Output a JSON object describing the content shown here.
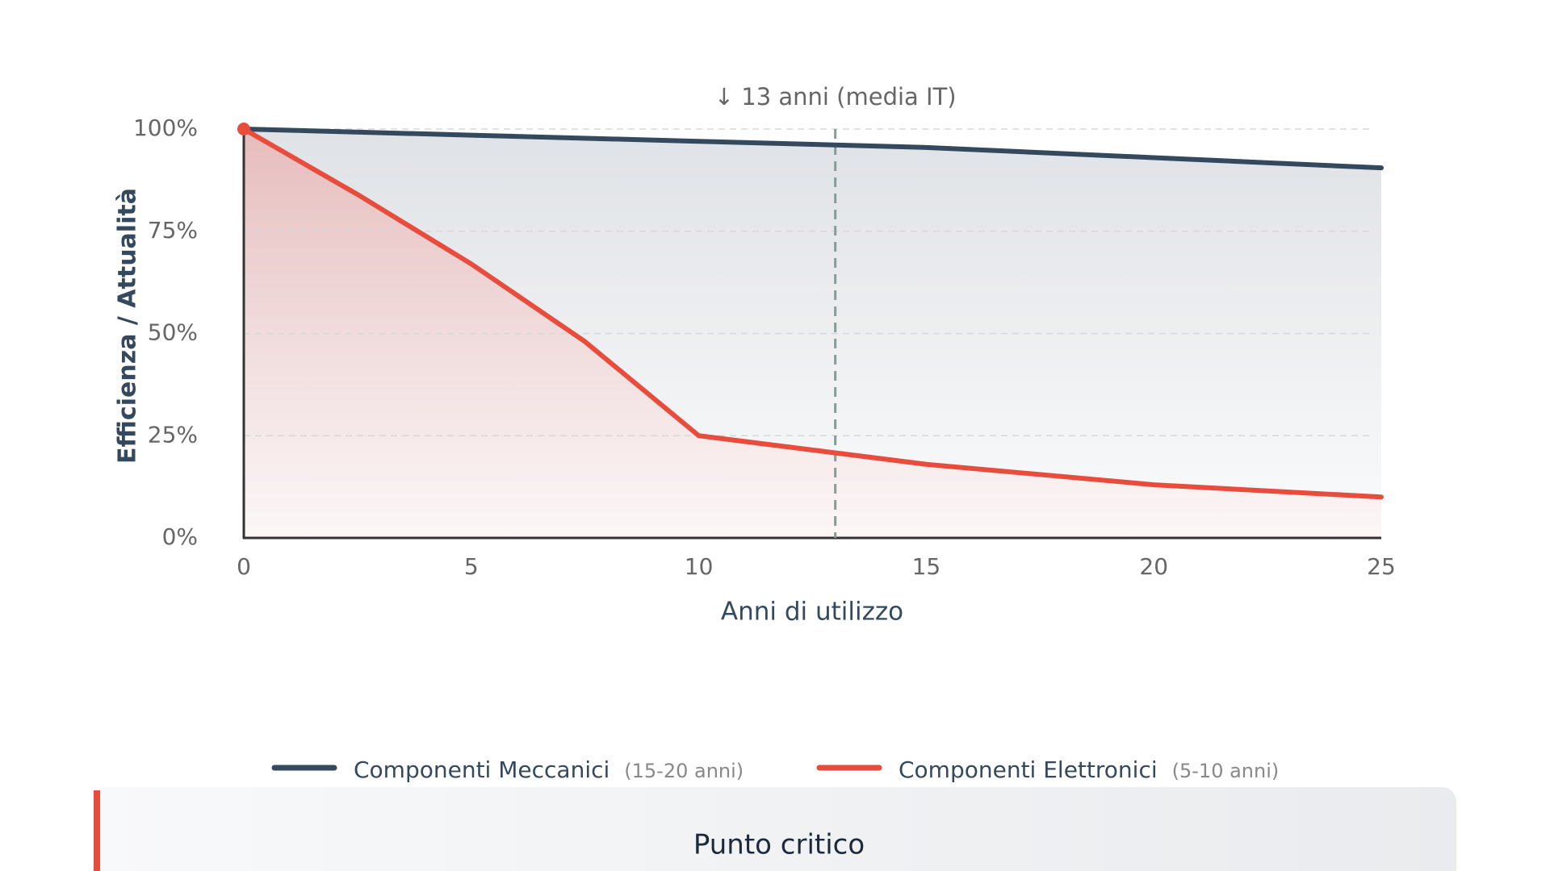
{
  "chart_data": {
    "type": "line",
    "x_label": "Anni di utilizzo",
    "y_label": "Efficienza / Attualità",
    "annotation": {
      "x": 13,
      "label": "↓ 13 anni (media IT)"
    },
    "series": [
      {
        "name": "Componenti Meccanici",
        "note": "(15-20 anni)",
        "color": "#34495e",
        "x": [
          0,
          5,
          10,
          15,
          20,
          25
        ],
        "values": [
          100,
          98.5,
          97,
          95.5,
          93,
          90.5
        ]
      },
      {
        "name": "Componenti Elettronici",
        "note": "(5-10 anni)",
        "color": "#e74c3c",
        "x": [
          0,
          2.5,
          5,
          7.5,
          10,
          15,
          20,
          25
        ],
        "values": [
          100,
          84,
          67,
          48,
          25,
          18,
          13,
          10
        ]
      }
    ],
    "xlim": [
      0,
      25
    ],
    "xticks": [
      0,
      5,
      10,
      15,
      20,
      25
    ],
    "ylim": [
      0,
      100
    ],
    "yticks": [
      {
        "value": 0,
        "label": "0%"
      },
      {
        "value": 25,
        "label": "25%"
      },
      {
        "value": 50,
        "label": "50%"
      },
      {
        "value": 75,
        "label": "75%"
      },
      {
        "value": 100,
        "label": "100%"
      }
    ],
    "grid": true
  },
  "card": {
    "title": "Punto critico"
  }
}
